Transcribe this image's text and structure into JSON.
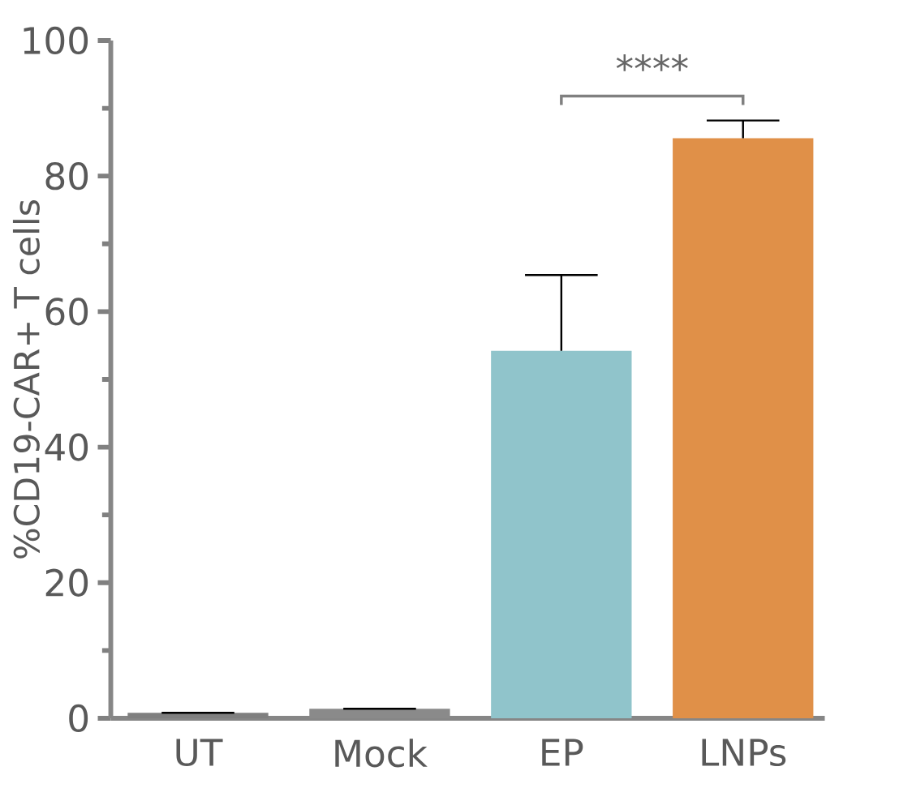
{
  "chart_data": {
    "type": "bar",
    "ylabel": "%CD19-CAR+ T cells",
    "categories": [
      "UT",
      "Mock",
      "EP",
      "LNPs"
    ],
    "values": [
      0.8,
      1.4,
      54.2,
      85.6
    ],
    "errors": [
      null,
      null,
      [
        54.2,
        65.4
      ],
      [
        85.6,
        88.2
      ]
    ],
    "colors": [
      "#7f7f7f",
      "#8a8a8a",
      "#90c4cb",
      "#e09048"
    ],
    "ylim": [
      0,
      100
    ],
    "yticks": [
      0,
      20,
      40,
      60,
      80,
      100
    ],
    "grid": false,
    "annotations": [
      "****"
    ]
  }
}
